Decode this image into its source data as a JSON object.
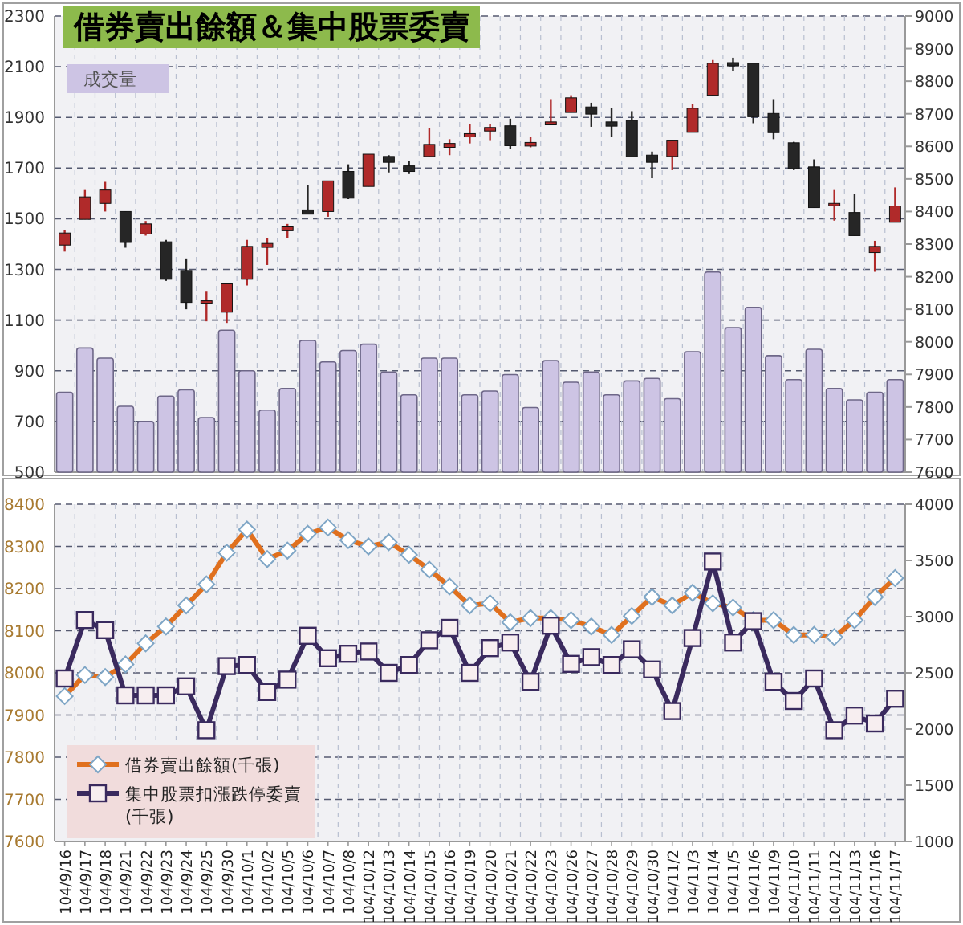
{
  "chart_data": [
    {
      "type": "candlestick",
      "title": "借券賣出餘額＆集中股票委賣",
      "categories": [
        null,
        null,
        null,
        null,
        null,
        null,
        null,
        null,
        null,
        null,
        null,
        null,
        null,
        null,
        null,
        null,
        null,
        null,
        null,
        null,
        null,
        null,
        null,
        null,
        null,
        null,
        null,
        null,
        null,
        null,
        null,
        null,
        null,
        null,
        null,
        null,
        null,
        null,
        null,
        null,
        null,
        null
      ],
      "ylim": [
        500,
        2300
      ],
      "yticks": [
        500,
        700,
        900,
        1100,
        1300,
        1500,
        1700,
        1900,
        2100,
        2300
      ],
      "y2lim": [
        7600,
        9000
      ],
      "y2ticks": [
        7600,
        7700,
        7800,
        7900,
        8000,
        8100,
        8200,
        8300,
        8400,
        8500,
        8600,
        8700,
        8800,
        8900,
        9000
      ],
      "grid": true,
      "legend": "top left",
      "tick_labels": "y",
      "series": [
        {
          "type": "bar",
          "name": "成交量",
          "color": "#cdc4e4",
          "values": [
            815,
            990,
            950,
            760,
            700,
            800,
            825,
            715,
            1060,
            900,
            745,
            830,
            1020,
            935,
            980,
            1005,
            895,
            805,
            950,
            950,
            805,
            820,
            885,
            755,
            940,
            855,
            895,
            805,
            860,
            870,
            790,
            975,
            1290,
            1070,
            1150,
            960,
            865,
            985,
            830,
            785,
            815,
            865
          ]
        },
        {
          "axis": "y2",
          "ohlc": [
            [
              8297,
              8343,
              8277,
              8334
            ],
            [
              8376,
              8466,
              8376,
              8445
            ],
            [
              8425,
              8491,
              8400,
              8466
            ],
            [
              8400,
              8400,
              8289,
              8305
            ],
            [
              8331,
              8371,
              8326,
              8362
            ],
            [
              8307,
              8313,
              8187,
              8192
            ],
            [
              8219,
              8256,
              8100,
              8121
            ],
            [
              8124,
              8154,
              8063,
              8126
            ],
            [
              8091,
              8178,
              8058,
              8178
            ],
            [
              8192,
              8313,
              8173,
              8293
            ],
            [
              8290,
              8318,
              8236,
              8302
            ],
            [
              8341,
              8362,
              8318,
              8353
            ],
            [
              8405,
              8482,
              8392,
              8392
            ],
            [
              8400,
              8494,
              8384,
              8494
            ],
            [
              8523,
              8545,
              8438,
              8441
            ],
            [
              8477,
              8576,
              8477,
              8576
            ],
            [
              8569,
              8573,
              8520,
              8551
            ],
            [
              8540,
              8556,
              8515,
              8523
            ],
            [
              8569,
              8655,
              8569,
              8606
            ],
            [
              8597,
              8622,
              8573,
              8609
            ],
            [
              8629,
              8668,
              8609,
              8639
            ],
            [
              8647,
              8668,
              8619,
              8658
            ],
            [
              8663,
              8685,
              8592,
              8602
            ],
            [
              8601,
              8630,
              8597,
              8612
            ],
            [
              8666,
              8745,
              8666,
              8675
            ],
            [
              8704,
              8757,
              8704,
              8749
            ],
            [
              8721,
              8734,
              8660,
              8699
            ],
            [
              8675,
              8717,
              8630,
              8662
            ],
            [
              8680,
              8708,
              8568,
              8568
            ],
            [
              8573,
              8584,
              8502,
              8551
            ],
            [
              8569,
              8619,
              8527,
              8619
            ],
            [
              8643,
              8729,
              8643,
              8717
            ],
            [
              8757,
              8865,
              8757,
              8855
            ],
            [
              8857,
              8872,
              8831,
              8847
            ],
            [
              8855,
              8855,
              8671,
              8691
            ],
            [
              8701,
              8745,
              8622,
              8642
            ],
            [
              8611,
              8614,
              8527,
              8532
            ],
            [
              8537,
              8560,
              8412,
              8412
            ],
            [
              8422,
              8466,
              8372,
              8425
            ],
            [
              8397,
              8454,
              8326,
              8326
            ],
            [
              8274,
              8310,
              8215,
              8293
            ],
            [
              8367,
              8474,
              8367,
              8417
            ]
          ],
          "colors": [
            "#b02a2a",
            "#b02a2a",
            "#b02a2a",
            "#262626",
            "#b02a2a",
            "#262626",
            "#262626",
            "#b02a2a",
            "#b02a2a",
            "#b02a2a",
            "#b02a2a",
            "#b02a2a",
            "#262626",
            "#b02a2a",
            "#262626",
            "#b02a2a",
            "#262626",
            "#262626",
            "#b02a2a",
            "#b02a2a",
            "#b02a2a",
            "#b02a2a",
            "#262626",
            "#b02a2a",
            "#b02a2a",
            "#b02a2a",
            "#262626",
            "#262626",
            "#262626",
            "#262626",
            "#b02a2a",
            "#b02a2a",
            "#b02a2a",
            "#262626",
            "#262626",
            "#262626",
            "#262626",
            "#262626",
            "#b02a2a",
            "#262626",
            "#b02a2a",
            "#b02a2a"
          ]
        }
      ]
    },
    {
      "type": "line",
      "categories": [
        "104/9/16",
        "104/9/17",
        "104/9/18",
        "104/9/21",
        "104/9/22",
        "104/9/23",
        "104/9/24",
        "104/9/25",
        "104/9/30",
        "104/10/1",
        "104/10/2",
        "104/10/5",
        "104/10/6",
        "104/10/7",
        "104/10/8",
        "104/10/12",
        "104/10/13",
        "104/10/14",
        "104/10/15",
        "104/10/16",
        "104/10/19",
        "104/10/20",
        "104/10/21",
        "104/10/22",
        "104/10/23",
        "104/10/26",
        "104/10/27",
        "104/10/28",
        "104/10/29",
        "104/10/30",
        "104/11/2",
        "104/11/3",
        "104/11/4",
        "104/11/5",
        "104/11/6",
        "104/11/9",
        "104/11/10",
        "104/11/11",
        "104/11/12",
        "104/11/13",
        "104/11/16",
        "104/11/17"
      ],
      "ylim": [
        7600,
        8400
      ],
      "yticks": [
        7600,
        7700,
        7800,
        7900,
        8000,
        8100,
        8200,
        8300,
        8400
      ],
      "y2lim": [
        1000,
        4000
      ],
      "y2ticks": [
        1000,
        1500,
        2000,
        2500,
        3000,
        3500,
        4000
      ],
      "grid": true,
      "legend": "bottom left",
      "series": [
        {
          "name": "借券賣出餘額(千張)",
          "color": "#e0701e",
          "marker": "diamond",
          "values": [
            7945,
            7995,
            7990,
            8020,
            8070,
            8110,
            8160,
            8210,
            8285,
            8340,
            8270,
            8290,
            8330,
            8345,
            8315,
            8300,
            8310,
            8280,
            8245,
            8205,
            8160,
            8165,
            8120,
            8130,
            8130,
            8125,
            8110,
            8090,
            8135,
            8180,
            8160,
            8190,
            8165,
            8155,
            8125,
            8125,
            8090,
            8090,
            8085,
            8125,
            8180,
            8225
          ]
        },
        {
          "name": "集中股票扣漲跌停委賣(千張)",
          "color": "#3a2a5e",
          "marker": "square",
          "axis": "y2",
          "values": [
            2450,
            2970,
            2880,
            2300,
            2300,
            2300,
            2380,
            1990,
            2560,
            2570,
            2330,
            2440,
            2830,
            2630,
            2670,
            2690,
            2500,
            2570,
            2790,
            2900,
            2500,
            2720,
            2770,
            2420,
            2920,
            2580,
            2640,
            2570,
            2710,
            2530,
            2160,
            2810,
            3490,
            2770,
            2960,
            2420,
            2250,
            2450,
            1990,
            2120,
            2050,
            2270
          ]
        }
      ]
    }
  ]
}
